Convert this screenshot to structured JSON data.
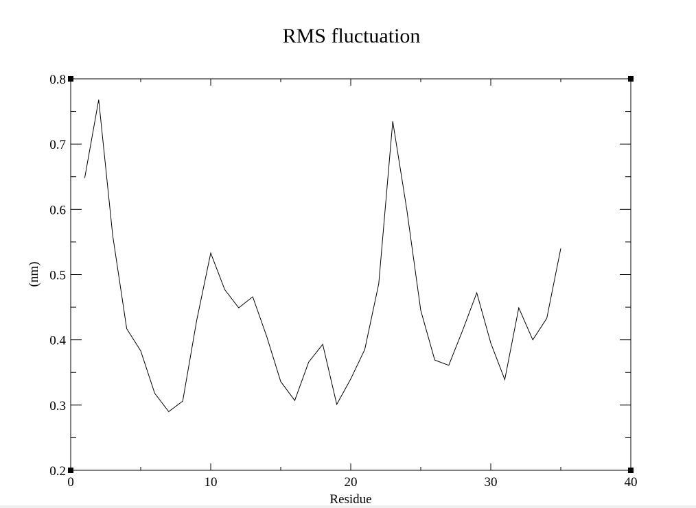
{
  "chart_data": {
    "type": "line",
    "title": "RMS fluctuation",
    "xlabel": "Residue",
    "ylabel": "(nm)",
    "xlim": [
      0,
      40
    ],
    "ylim": [
      0.2,
      0.8
    ],
    "x_ticks": [
      0,
      10,
      20,
      30,
      40
    ],
    "y_ticks": [
      0.2,
      0.3,
      0.4,
      0.5,
      0.6,
      0.7,
      0.8
    ],
    "x_tick_labels": [
      "0",
      "10",
      "20",
      "30",
      "40"
    ],
    "y_tick_labels": [
      "0.2",
      "0.3",
      "0.4",
      "0.5",
      "0.6",
      "0.7",
      "0.8"
    ],
    "x_minor_step": 5,
    "y_minor_step": 0.05,
    "grid": false,
    "line_color": "#000000",
    "series": [
      {
        "x": [
          1,
          2,
          3,
          4,
          5,
          6,
          7,
          8,
          9,
          10,
          11,
          12,
          13,
          14,
          15,
          16,
          17,
          18,
          19,
          20,
          21,
          22,
          23,
          24,
          25,
          26,
          27,
          28,
          29,
          30,
          31,
          32,
          33,
          34,
          35
        ],
        "y": [
          0.648,
          0.768,
          0.56,
          0.417,
          0.383,
          0.318,
          0.29,
          0.306,
          0.43,
          0.533,
          0.477,
          0.449,
          0.466,
          0.405,
          0.336,
          0.307,
          0.366,
          0.393,
          0.301,
          0.34,
          0.385,
          0.486,
          0.735,
          0.6,
          0.445,
          0.369,
          0.361,
          0.415,
          0.472,
          0.395,
          0.339,
          0.449,
          0.4,
          0.433,
          0.54
        ]
      }
    ]
  }
}
